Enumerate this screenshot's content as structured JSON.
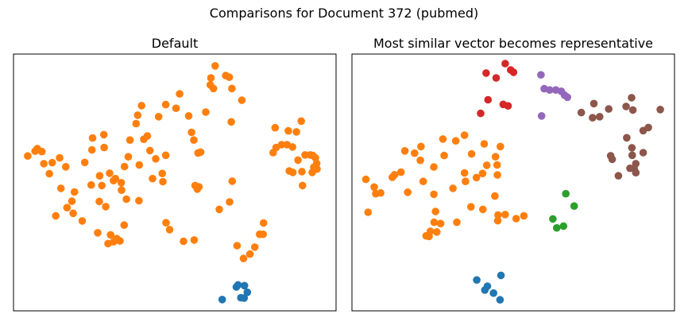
{
  "figure": {
    "suptitle": "Comparisons for Document 372 (pubmed)"
  },
  "chart_data": [
    {
      "type": "scatter",
      "title": "Default",
      "xlabel": "",
      "ylabel": "",
      "axes_ticks": "none",
      "grid": false,
      "xlim": [
        0,
        100
      ],
      "ylim": [
        0,
        100
      ],
      "series": [
        {
          "color": "#ff7f0e",
          "points": [
            [
              62.5,
              95.4
            ],
            [
              61.2,
              90.7
            ],
            [
              65.8,
              91.6
            ],
            [
              66.9,
              91.0
            ],
            [
              61.0,
              88.0
            ],
            [
              62.0,
              86.6
            ],
            [
              67.7,
              86.6
            ],
            [
              70.8,
              82.0
            ],
            [
              51.5,
              84.5
            ],
            [
              59.6,
              77.4
            ],
            [
              67.5,
              73.6
            ],
            [
              54.3,
              75.9
            ],
            [
              50.4,
              78.9
            ],
            [
              55.2,
              69.5
            ],
            [
              55.9,
              66.5
            ],
            [
              58.0,
              61.8
            ],
            [
              57.2,
              61.5
            ],
            [
              47.2,
              80.3
            ],
            [
              45.0,
              75.6
            ],
            [
              39.7,
              79.9
            ],
            [
              38.5,
              76.2
            ],
            [
              41.5,
              68.1
            ],
            [
              40.4,
              66.8
            ],
            [
              42.3,
              62.4
            ],
            [
              39.0,
              56.8
            ],
            [
              43.1,
              51.5
            ],
            [
              46.1,
              53.5
            ],
            [
              46.3,
              50.3
            ],
            [
              47.2,
              60.6
            ],
            [
              44.1,
              59.2
            ],
            [
              38.0,
              72.9
            ],
            [
              36.1,
              66.5
            ],
            [
              35.6,
              60.0
            ],
            [
              34.4,
              56.2
            ],
            [
              33.4,
              49.9
            ],
            [
              33.5,
              47.0
            ],
            [
              31.6,
              51.5
            ],
            [
              38.9,
              42.9
            ],
            [
              35.0,
              43.5
            ],
            [
              31.0,
              50.7
            ],
            [
              26.6,
              42.6
            ],
            [
              29.8,
              53.6
            ],
            [
              27.4,
              48.8
            ],
            [
              28.6,
              40.6
            ],
            [
              22.1,
              57.8
            ],
            [
              24.1,
              49.0
            ],
            [
              26.7,
              52.6
            ],
            [
              28.0,
              68.6
            ],
            [
              24.3,
              62.7
            ],
            [
              28.1,
              63.6
            ],
            [
              24.5,
              67.3
            ],
            [
              18.5,
              38.0
            ],
            [
              21.3,
              35.0
            ],
            [
              29.3,
              26.2
            ],
            [
              30.1,
              29.6
            ],
            [
              18.1,
              42.7
            ],
            [
              18.9,
              46.3
            ],
            [
              16.6,
              40.2
            ],
            [
              13.1,
              37.0
            ],
            [
              14.7,
              47.7
            ],
            [
              16.2,
              56.1
            ],
            [
              11.1,
              53.4
            ],
            [
              14.3,
              59.6
            ],
            [
              7.4,
              63.2
            ],
            [
              9.4,
              57.3
            ],
            [
              8.8,
              62.0
            ],
            [
              6.7,
              62.2
            ],
            [
              4.4,
              60.3
            ],
            [
              12.0,
              57.7
            ],
            [
              26.1,
              30.4
            ],
            [
              31.0,
              26.9
            ],
            [
              32.0,
              28.1
            ],
            [
              33.0,
              27.2
            ],
            [
              34.3,
              33.4
            ],
            [
              48.4,
              31.6
            ],
            [
              47.3,
              34.3
            ],
            [
              52.7,
              27.1
            ],
            [
              56.0,
              27.6
            ],
            [
              56.3,
              48.8
            ],
            [
              57.5,
              48.3
            ],
            [
              57.0,
              47.4
            ],
            [
              63.8,
              39.5
            ],
            [
              67.0,
              42.4
            ],
            [
              67.8,
              50.5
            ],
            [
              69.3,
              25.4
            ],
            [
              71.3,
              20.4
            ],
            [
              73.3,
              22.1
            ],
            [
              74.8,
              24.8
            ],
            [
              76.3,
              29.8
            ],
            [
              77.4,
              29.8
            ],
            [
              77.5,
              34.2
            ],
            [
              81.1,
              71.3
            ],
            [
              85.2,
              70.1
            ],
            [
              89.2,
              73.9
            ],
            [
              88.2,
              58.7
            ],
            [
              80.5,
              61.6
            ],
            [
              81.4,
              63.6
            ],
            [
              83.1,
              64.7
            ],
            [
              84.8,
              64.7
            ],
            [
              86.5,
              63.8
            ],
            [
              87.7,
              69.7
            ],
            [
              85.5,
              54.5
            ],
            [
              86.6,
              53.9
            ],
            [
              89.6,
              48.8
            ],
            [
              89.4,
              54.2
            ],
            [
              90.4,
              60.7
            ],
            [
              92.0,
              60.7
            ],
            [
              92.8,
              60.5
            ],
            [
              93.6,
              59.6
            ],
            [
              94.0,
              57.4
            ],
            [
              94.1,
              55.2
            ],
            [
              92.6,
              53.9
            ],
            [
              93.1,
              55.9
            ]
          ]
        },
        {
          "color": "#1f77b4",
          "points": [
            [
              69.6,
              10.1
            ],
            [
              69.1,
              9.3
            ],
            [
              71.6,
              9.8
            ],
            [
              72.5,
              7.2
            ],
            [
              71.5,
              5.0
            ],
            [
              70.5,
              5.1
            ],
            [
              64.7,
              4.4
            ]
          ]
        }
      ]
    },
    {
      "type": "scatter",
      "title": "Most similar vector becomes representative",
      "xlabel": "",
      "ylabel": "",
      "axes_ticks": "none",
      "grid": false,
      "xlim": [
        0,
        100
      ],
      "ylim": [
        0,
        100
      ],
      "series": [
        {
          "color": "#ff7f0e",
          "points": [
            [
              4.3,
              51.2
            ],
            [
              6.9,
              48.2
            ],
            [
              7.4,
              45.6
            ],
            [
              8.9,
              45.9
            ],
            [
              5.0,
              38.4
            ],
            [
              12.5,
              52.0
            ],
            [
              13.2,
              53.0
            ],
            [
              15.2,
              54.0
            ],
            [
              16.4,
              62.3
            ],
            [
              19.4,
              61.4
            ],
            [
              21.4,
              64.0
            ],
            [
              21.2,
              58.6
            ],
            [
              22.1,
              50.4
            ],
            [
              17.3,
              46.2
            ],
            [
              25.4,
              56.0
            ],
            [
              28.6,
              60.5
            ],
            [
              28.2,
              66.9
            ],
            [
              32.2,
              66.2
            ],
            [
              34.9,
              68.4
            ],
            [
              37.1,
              61.1
            ],
            [
              34.9,
              53.7
            ],
            [
              35.2,
              50.4
            ],
            [
              31.3,
              47.7
            ],
            [
              38.6,
              51.9
            ],
            [
              40.5,
              53.5
            ],
            [
              41.8,
              56.7
            ],
            [
              45.0,
              56.8
            ],
            [
              45.1,
              52.9
            ],
            [
              44.5,
              60.0
            ],
            [
              46.0,
              64.0
            ],
            [
              41.0,
              65.0
            ],
            [
              44.3,
              44.7
            ],
            [
              25.4,
              45.4
            ],
            [
              25.9,
              38.7
            ],
            [
              36.9,
              40.5
            ],
            [
              40.6,
              39.5
            ],
            [
              45.2,
              35.1
            ],
            [
              45.3,
              37.3
            ],
            [
              47.5,
              37.5
            ],
            [
              50.9,
              35.9
            ],
            [
              53.3,
              37.0
            ],
            [
              25.5,
              34.5
            ],
            [
              27.5,
              34.0
            ],
            [
              32.5,
              34.5
            ],
            [
              23.9,
              29.0
            ],
            [
              24.3,
              31.0
            ],
            [
              26.3,
              30.7
            ],
            [
              23.0,
              29.2
            ]
          ]
        },
        {
          "color": "#d62728",
          "points": [
            [
              47.5,
              96.3
            ],
            [
              50.1,
              92.9
            ],
            [
              49.2,
              93.8
            ],
            [
              41.6,
              92.6
            ],
            [
              44.7,
              90.7
            ],
            [
              42.2,
              82.2
            ],
            [
              46.9,
              80.4
            ],
            [
              48.4,
              79.8
            ],
            [
              39.9,
              76.9
            ]
          ]
        },
        {
          "color": "#9467bd",
          "points": [
            [
              58.6,
              91.9
            ],
            [
              59.6,
              86.5
            ],
            [
              61.3,
              86.0
            ],
            [
              63.2,
              86.0
            ],
            [
              64.9,
              85.5
            ],
            [
              65.9,
              84.0
            ],
            [
              66.8,
              83.2
            ],
            [
              58.8,
              75.9
            ]
          ]
        },
        {
          "color": "#8c564b",
          "points": [
            [
              75.0,
              80.7
            ],
            [
              71.1,
              77.2
            ],
            [
              74.6,
              75.2
            ],
            [
              76.8,
              75.6
            ],
            [
              79.6,
              78.6
            ],
            [
              85.0,
              79.6
            ],
            [
              86.7,
              83.0
            ],
            [
              87.1,
              78.2
            ],
            [
              95.6,
              78.4
            ],
            [
              85.2,
              67.4
            ],
            [
              86.8,
              63.5
            ],
            [
              90.3,
              70.2
            ],
            [
              91.9,
              71.4
            ],
            [
              88.0,
              57.3
            ],
            [
              90.3,
              61.6
            ],
            [
              86.9,
              60.6
            ],
            [
              80.2,
              60.4
            ],
            [
              80.7,
              59.0
            ],
            [
              82.6,
              52.6
            ],
            [
              86.2,
              55.5
            ],
            [
              87.5,
              55.3
            ],
            [
              88.0,
              53.8
            ]
          ]
        },
        {
          "color": "#2ca02c",
          "points": [
            [
              66.3,
              45.6
            ],
            [
              68.9,
              40.8
            ],
            [
              62.3,
              35.8
            ],
            [
              63.5,
              32.3
            ],
            [
              65.6,
              33.0
            ]
          ]
        },
        {
          "color": "#1f77b4",
          "points": [
            [
              46.2,
              13.8
            ],
            [
              38.7,
              12.0
            ],
            [
              42.0,
              9.6
            ],
            [
              41.2,
              8.1
            ],
            [
              43.9,
              6.9
            ],
            [
              45.9,
              4.3
            ]
          ]
        }
      ]
    }
  ]
}
